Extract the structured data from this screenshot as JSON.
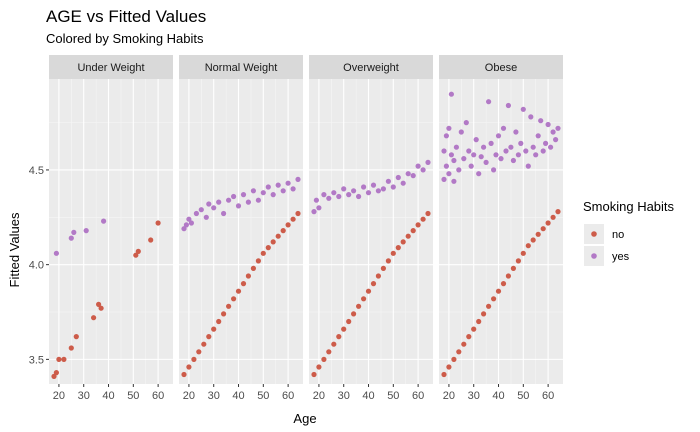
{
  "chart_data": {
    "type": "scatter",
    "title": "AGE vs Fitted Values",
    "subtitle": "Colored by Smoking Habits",
    "xlabel": "Age",
    "ylabel": "Fitted Values",
    "xlim": [
      16,
      66
    ],
    "ylim": [
      3.37,
      4.98
    ],
    "x_ticks": [
      20,
      30,
      40,
      50,
      60
    ],
    "y_ticks": [
      3.5,
      4.0,
      4.5
    ],
    "y_tick_labels": [
      "3.5",
      "4.0",
      "4.5"
    ],
    "grid": true,
    "legend": {
      "title": "Smoking Habits",
      "position": "right",
      "entries": [
        "no",
        "yes"
      ]
    },
    "colors": {
      "no": "#cd5c4a",
      "yes": "#b279c6",
      "panel_bg": "#ebebeb",
      "strip_bg": "#d9d9d9",
      "grid": "#ffffff"
    },
    "panels": [
      {
        "label": "Under Weight",
        "series": [
          {
            "name": "no",
            "points": [
              [
                18,
                3.41
              ],
              [
                19,
                3.43
              ],
              [
                20,
                3.5
              ],
              [
                22,
                3.5
              ],
              [
                25,
                3.56
              ],
              [
                27,
                3.62
              ],
              [
                34,
                3.72
              ],
              [
                36,
                3.79
              ],
              [
                37,
                3.77
              ],
              [
                51,
                4.05
              ],
              [
                52,
                4.07
              ],
              [
                57,
                4.13
              ],
              [
                60,
                4.22
              ]
            ]
          },
          {
            "name": "yes",
            "points": [
              [
                19,
                4.06
              ],
              [
                25,
                4.14
              ],
              [
                26,
                4.17
              ],
              [
                31,
                4.18
              ],
              [
                38,
                4.23
              ]
            ]
          }
        ]
      },
      {
        "label": "Normal Weight",
        "series": [
          {
            "name": "no",
            "points": [
              [
                18,
                3.42
              ],
              [
                20,
                3.46
              ],
              [
                22,
                3.5
              ],
              [
                24,
                3.54
              ],
              [
                26,
                3.58
              ],
              [
                28,
                3.62
              ],
              [
                30,
                3.66
              ],
              [
                32,
                3.7
              ],
              [
                34,
                3.74
              ],
              [
                36,
                3.78
              ],
              [
                38,
                3.82
              ],
              [
                40,
                3.86
              ],
              [
                42,
                3.9
              ],
              [
                44,
                3.94
              ],
              [
                46,
                3.98
              ],
              [
                48,
                4.02
              ],
              [
                50,
                4.06
              ],
              [
                52,
                4.09
              ],
              [
                54,
                4.12
              ],
              [
                56,
                4.15
              ],
              [
                58,
                4.18
              ],
              [
                60,
                4.21
              ],
              [
                62,
                4.24
              ],
              [
                64,
                4.27
              ]
            ]
          },
          {
            "name": "yes",
            "points": [
              [
                18,
                4.19
              ],
              [
                19,
                4.21
              ],
              [
                20,
                4.24
              ],
              [
                21,
                4.22
              ],
              [
                23,
                4.27
              ],
              [
                25,
                4.29
              ],
              [
                27,
                4.25
              ],
              [
                28,
                4.32
              ],
              [
                30,
                4.3
              ],
              [
                32,
                4.33
              ],
              [
                34,
                4.27
              ],
              [
                36,
                4.34
              ],
              [
                38,
                4.36
              ],
              [
                40,
                4.31
              ],
              [
                42,
                4.37
              ],
              [
                44,
                4.33
              ],
              [
                46,
                4.39
              ],
              [
                48,
                4.34
              ],
              [
                50,
                4.38
              ],
              [
                52,
                4.41
              ],
              [
                54,
                4.37
              ],
              [
                56,
                4.42
              ],
              [
                58,
                4.39
              ],
              [
                60,
                4.43
              ],
              [
                62,
                4.4
              ],
              [
                64,
                4.45
              ]
            ]
          }
        ]
      },
      {
        "label": "Overweight",
        "series": [
          {
            "name": "no",
            "points": [
              [
                18,
                3.42
              ],
              [
                20,
                3.46
              ],
              [
                22,
                3.5
              ],
              [
                24,
                3.54
              ],
              [
                26,
                3.58
              ],
              [
                28,
                3.62
              ],
              [
                30,
                3.66
              ],
              [
                32,
                3.7
              ],
              [
                34,
                3.74
              ],
              [
                36,
                3.78
              ],
              [
                38,
                3.82
              ],
              [
                40,
                3.86
              ],
              [
                42,
                3.9
              ],
              [
                44,
                3.94
              ],
              [
                46,
                3.98
              ],
              [
                48,
                4.02
              ],
              [
                50,
                4.06
              ],
              [
                52,
                4.09
              ],
              [
                54,
                4.12
              ],
              [
                56,
                4.15
              ],
              [
                58,
                4.18
              ],
              [
                60,
                4.21
              ],
              [
                62,
                4.24
              ],
              [
                64,
                4.27
              ]
            ]
          },
          {
            "name": "yes",
            "points": [
              [
                18,
                4.28
              ],
              [
                19,
                4.34
              ],
              [
                20,
                4.3
              ],
              [
                22,
                4.37
              ],
              [
                24,
                4.35
              ],
              [
                26,
                4.38
              ],
              [
                28,
                4.36
              ],
              [
                30,
                4.4
              ],
              [
                32,
                4.37
              ],
              [
                34,
                4.39
              ],
              [
                36,
                4.36
              ],
              [
                38,
                4.41
              ],
              [
                40,
                4.38
              ],
              [
                42,
                4.42
              ],
              [
                44,
                4.39
              ],
              [
                46,
                4.4
              ],
              [
                48,
                4.44
              ],
              [
                50,
                4.41
              ],
              [
                52,
                4.46
              ],
              [
                54,
                4.43
              ],
              [
                56,
                4.48
              ],
              [
                58,
                4.47
              ],
              [
                60,
                4.52
              ],
              [
                62,
                4.5
              ],
              [
                64,
                4.54
              ]
            ]
          }
        ]
      },
      {
        "label": "Obese",
        "series": [
          {
            "name": "no",
            "points": [
              [
                18,
                3.42
              ],
              [
                20,
                3.46
              ],
              [
                22,
                3.5
              ],
              [
                24,
                3.54
              ],
              [
                26,
                3.58
              ],
              [
                28,
                3.62
              ],
              [
                30,
                3.66
              ],
              [
                32,
                3.7
              ],
              [
                34,
                3.74
              ],
              [
                36,
                3.78
              ],
              [
                38,
                3.82
              ],
              [
                40,
                3.86
              ],
              [
                42,
                3.9
              ],
              [
                44,
                3.94
              ],
              [
                46,
                3.98
              ],
              [
                48,
                4.02
              ],
              [
                50,
                4.06
              ],
              [
                52,
                4.1
              ],
              [
                54,
                4.13
              ],
              [
                56,
                4.16
              ],
              [
                58,
                4.19
              ],
              [
                60,
                4.22
              ],
              [
                62,
                4.25
              ],
              [
                64,
                4.28
              ]
            ]
          },
          {
            "name": "yes",
            "points": [
              [
                18,
                4.45
              ],
              [
                18,
                4.6
              ],
              [
                19,
                4.68
              ],
              [
                19,
                4.52
              ],
              [
                20,
                4.72
              ],
              [
                20,
                4.48
              ],
              [
                21,
                4.9
              ],
              [
                21,
                4.58
              ],
              [
                22,
                4.55
              ],
              [
                22,
                4.44
              ],
              [
                23,
                4.62
              ],
              [
                24,
                4.5
              ],
              [
                25,
                4.7
              ],
              [
                26,
                4.56
              ],
              [
                27,
                4.75
              ],
              [
                28,
                4.6
              ],
              [
                29,
                4.52
              ],
              [
                30,
                4.58
              ],
              [
                31,
                4.66
              ],
              [
                32,
                4.48
              ],
              [
                33,
                4.57
              ],
              [
                34,
                4.62
              ],
              [
                35,
                4.54
              ],
              [
                36,
                4.86
              ],
              [
                37,
                4.64
              ],
              [
                38,
                4.5
              ],
              [
                39,
                4.58
              ],
              [
                40,
                4.68
              ],
              [
                41,
                4.56
              ],
              [
                42,
                4.72
              ],
              [
                43,
                4.6
              ],
              [
                44,
                4.84
              ],
              [
                45,
                4.62
              ],
              [
                46,
                4.55
              ],
              [
                47,
                4.7
              ],
              [
                48,
                4.58
              ],
              [
                49,
                4.64
              ],
              [
                50,
                4.82
              ],
              [
                51,
                4.6
              ],
              [
                52,
                4.52
              ],
              [
                53,
                4.78
              ],
              [
                54,
                4.62
              ],
              [
                55,
                4.58
              ],
              [
                56,
                4.68
              ],
              [
                57,
                4.76
              ],
              [
                58,
                4.6
              ],
              [
                59,
                4.64
              ],
              [
                60,
                4.74
              ],
              [
                61,
                4.62
              ],
              [
                62,
                4.7
              ],
              [
                63,
                4.66
              ],
              [
                64,
                4.72
              ]
            ]
          }
        ]
      }
    ]
  }
}
